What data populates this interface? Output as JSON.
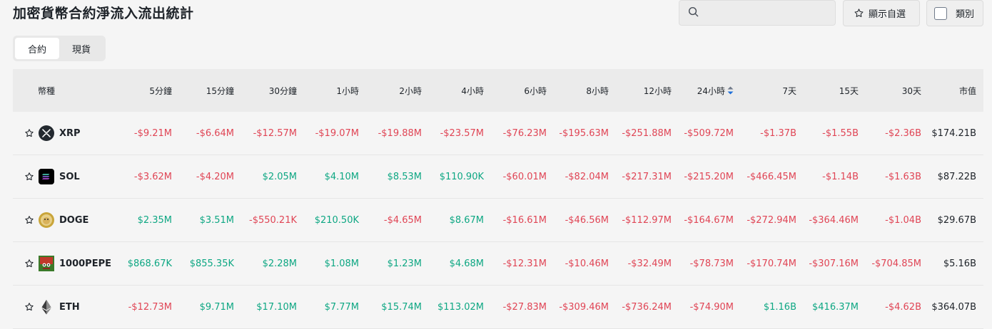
{
  "header": {
    "title": "加密貨幣合約淨流入流出統計",
    "search_placeholder": "",
    "favorites_label": "顯示自選",
    "category_label": "類別"
  },
  "tabs": [
    "合約",
    "現貨"
  ],
  "active_tab": 0,
  "columns": [
    "幣種",
    "5分鐘",
    "15分鐘",
    "30分鐘",
    "1小時",
    "2小時",
    "4小時",
    "6小時",
    "8小時",
    "12小時",
    "24小時",
    "7天",
    "15天",
    "30天",
    "市值"
  ],
  "sorted_column": "24小時",
  "rows": [
    {
      "symbol": "XRP",
      "icon": "xrp-logo-icon",
      "values": [
        "-$9.21M",
        "-$6.64M",
        "-$12.57M",
        "-$19.07M",
        "-$19.88M",
        "-$23.57M",
        "-$76.23M",
        "-$195.63M",
        "-$251.88M",
        "-$509.72M",
        "-$1.37B",
        "-$1.55B",
        "-$2.36B"
      ],
      "market_cap": "$174.21B"
    },
    {
      "symbol": "SOL",
      "icon": "sol-logo-icon",
      "values": [
        "-$3.62M",
        "-$4.20M",
        "$2.05M",
        "$4.10M",
        "$8.53M",
        "$110.90K",
        "-$60.01M",
        "-$82.04M",
        "-$217.31M",
        "-$215.20M",
        "-$466.45M",
        "-$1.14B",
        "-$1.63B"
      ],
      "market_cap": "$87.22B"
    },
    {
      "symbol": "DOGE",
      "icon": "doge-logo-icon",
      "values": [
        "$2.35M",
        "$3.51M",
        "-$550.21K",
        "$210.50K",
        "-$4.65M",
        "$8.67M",
        "-$16.61M",
        "-$46.56M",
        "-$112.97M",
        "-$164.67M",
        "-$272.94M",
        "-$364.46M",
        "-$1.04B"
      ],
      "market_cap": "$29.67B"
    },
    {
      "symbol": "1000PEPE",
      "icon": "pepe-logo-icon",
      "values": [
        "$868.67K",
        "$855.35K",
        "$2.28M",
        "$1.08M",
        "$1.23M",
        "$4.68M",
        "-$12.31M",
        "-$10.46M",
        "-$32.49M",
        "-$78.73M",
        "-$170.74M",
        "-$307.16M",
        "-$704.85M"
      ],
      "market_cap": "$5.16B"
    },
    {
      "symbol": "ETH",
      "icon": "eth-logo-icon",
      "values": [
        "-$12.73M",
        "$9.71M",
        "$17.10M",
        "$7.77M",
        "$15.74M",
        "$113.02M",
        "-$27.83M",
        "-$309.46M",
        "-$736.24M",
        "-$74.90M",
        "$1.16B",
        "$416.37M",
        "-$4.62B"
      ],
      "market_cap": "$364.07B"
    }
  ],
  "colors": {
    "positive": "#0ea783",
    "negative": "#e04555",
    "sort_active": "#1e6fd9"
  }
}
